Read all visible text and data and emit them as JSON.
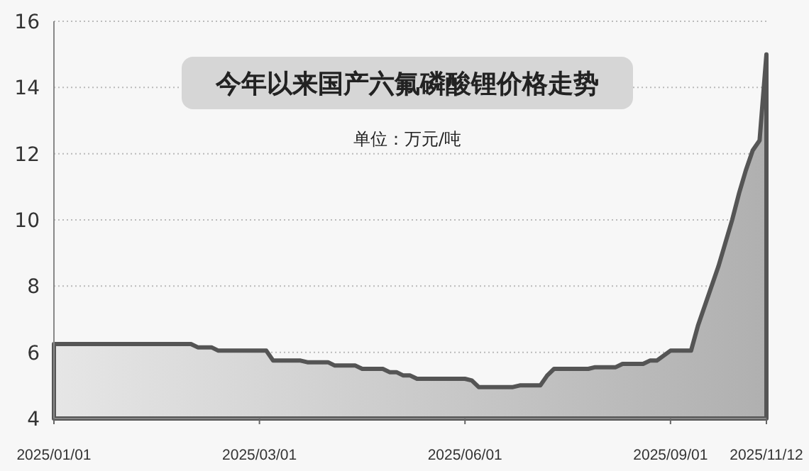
{
  "chart_data": {
    "type": "area",
    "title": "今年以来国产六氟磷酸锂价格走势",
    "subtitle": "单位：万元/吨",
    "categories": [
      "2025/01/01",
      null,
      null,
      null,
      null,
      null,
      null,
      null,
      null,
      null,
      null,
      null,
      null,
      null,
      null,
      null,
      null,
      null,
      null,
      null,
      null,
      null,
      null,
      null,
      null,
      null,
      null,
      null,
      null,
      null,
      "2025/03/01",
      null,
      null,
      null,
      null,
      null,
      null,
      null,
      null,
      null,
      null,
      null,
      null,
      null,
      null,
      null,
      null,
      null,
      null,
      null,
      null,
      null,
      null,
      null,
      null,
      null,
      null,
      null,
      null,
      null,
      "2025/06/01",
      null,
      null,
      null,
      null,
      null,
      null,
      null,
      null,
      null,
      null,
      null,
      null,
      null,
      null,
      null,
      null,
      null,
      null,
      null,
      null,
      null,
      null,
      null,
      null,
      null,
      null,
      null,
      null,
      null,
      "2025/09/01",
      null,
      null,
      null,
      null,
      null,
      null,
      null,
      null,
      null,
      null,
      null,
      null,
      null,
      "2025/11/12"
    ],
    "series": [
      {
        "color": "#555555",
        "values": [
          6.25,
          6.25,
          6.25,
          6.25,
          6.25,
          6.25,
          6.25,
          6.25,
          6.25,
          6.25,
          6.25,
          6.25,
          6.25,
          6.25,
          6.25,
          6.25,
          6.25,
          6.25,
          6.25,
          6.25,
          6.25,
          6.15,
          6.15,
          6.15,
          6.05,
          6.05,
          6.05,
          6.05,
          6.05,
          6.05,
          6.05,
          6.05,
          5.75,
          5.75,
          5.75,
          5.75,
          5.75,
          5.7,
          5.7,
          5.7,
          5.7,
          5.6,
          5.6,
          5.6,
          5.6,
          5.5,
          5.5,
          5.5,
          5.5,
          5.4,
          5.4,
          5.3,
          5.3,
          5.2,
          5.2,
          5.2,
          5.2,
          5.2,
          5.2,
          5.2,
          5.2,
          5.15,
          4.95,
          4.95,
          4.95,
          4.95,
          4.95,
          4.95,
          5.0,
          5.0,
          5.0,
          5.0,
          5.3,
          5.5,
          5.5,
          5.5,
          5.5,
          5.5,
          5.5,
          5.55,
          5.55,
          5.55,
          5.55,
          5.65,
          5.65,
          5.65,
          5.65,
          5.75,
          5.75,
          5.9,
          6.05,
          6.05,
          6.05,
          6.05,
          6.8,
          7.4,
          8.0,
          8.6,
          9.3,
          10.0,
          10.8,
          11.5,
          12.1,
          12.4,
          15.0
        ]
      }
    ],
    "ylim": [
      4,
      16
    ],
    "yticks": [
      4,
      6,
      8,
      10,
      12,
      14,
      16
    ],
    "grid": "y"
  }
}
